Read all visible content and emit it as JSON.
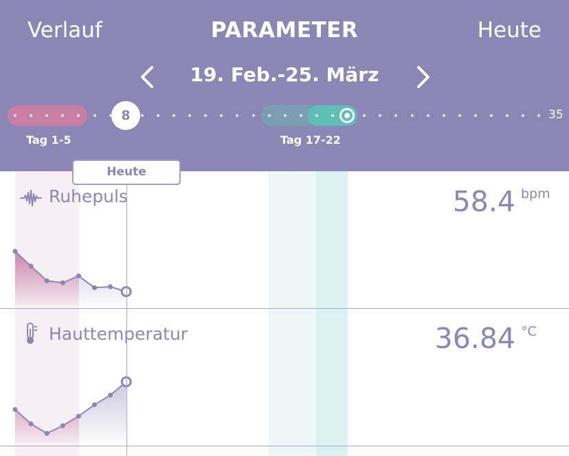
{
  "header": {
    "back_label": "Verlauf",
    "title": "PARAMETER",
    "today_label": "Heute",
    "date_range": "19. Feb.-25. März",
    "prev_icon": "chevron-left-icon",
    "next_icon": "chevron-right-icon"
  },
  "timeline": {
    "current_day": "8",
    "last_day": "35",
    "phase_period_label": "Tag 1-5",
    "phase_fertile_label": "Tag 17-22",
    "colors": {
      "period": "#c87ea5",
      "fertile": "#5ebfb9",
      "header": "#8c86b5"
    }
  },
  "today_badge": "Heute",
  "parameters": [
    {
      "name": "Ruhepuls",
      "icon": "pulse-wave-icon",
      "value": "58.4",
      "unit": "bpm"
    },
    {
      "name": "Hauttemperatur",
      "icon": "thermometer-icon",
      "value": "36.84",
      "unit": "°C"
    }
  ],
  "chart_data": [
    {
      "type": "area",
      "x": [
        1,
        2,
        3,
        4,
        5,
        6,
        7,
        8
      ],
      "y": [
        62.5,
        61.0,
        59.5,
        59.3,
        60.0,
        58.8,
        58.9,
        58.4
      ],
      "ylim": [
        57,
        64
      ],
      "highlight_last": true
    },
    {
      "type": "area",
      "x": [
        1,
        2,
        3,
        4,
        5,
        6,
        7,
        8
      ],
      "y": [
        36.55,
        36.4,
        36.3,
        36.38,
        36.48,
        36.6,
        36.7,
        36.84
      ],
      "ylim": [
        36.2,
        36.92
      ],
      "highlight_last": true
    }
  ]
}
